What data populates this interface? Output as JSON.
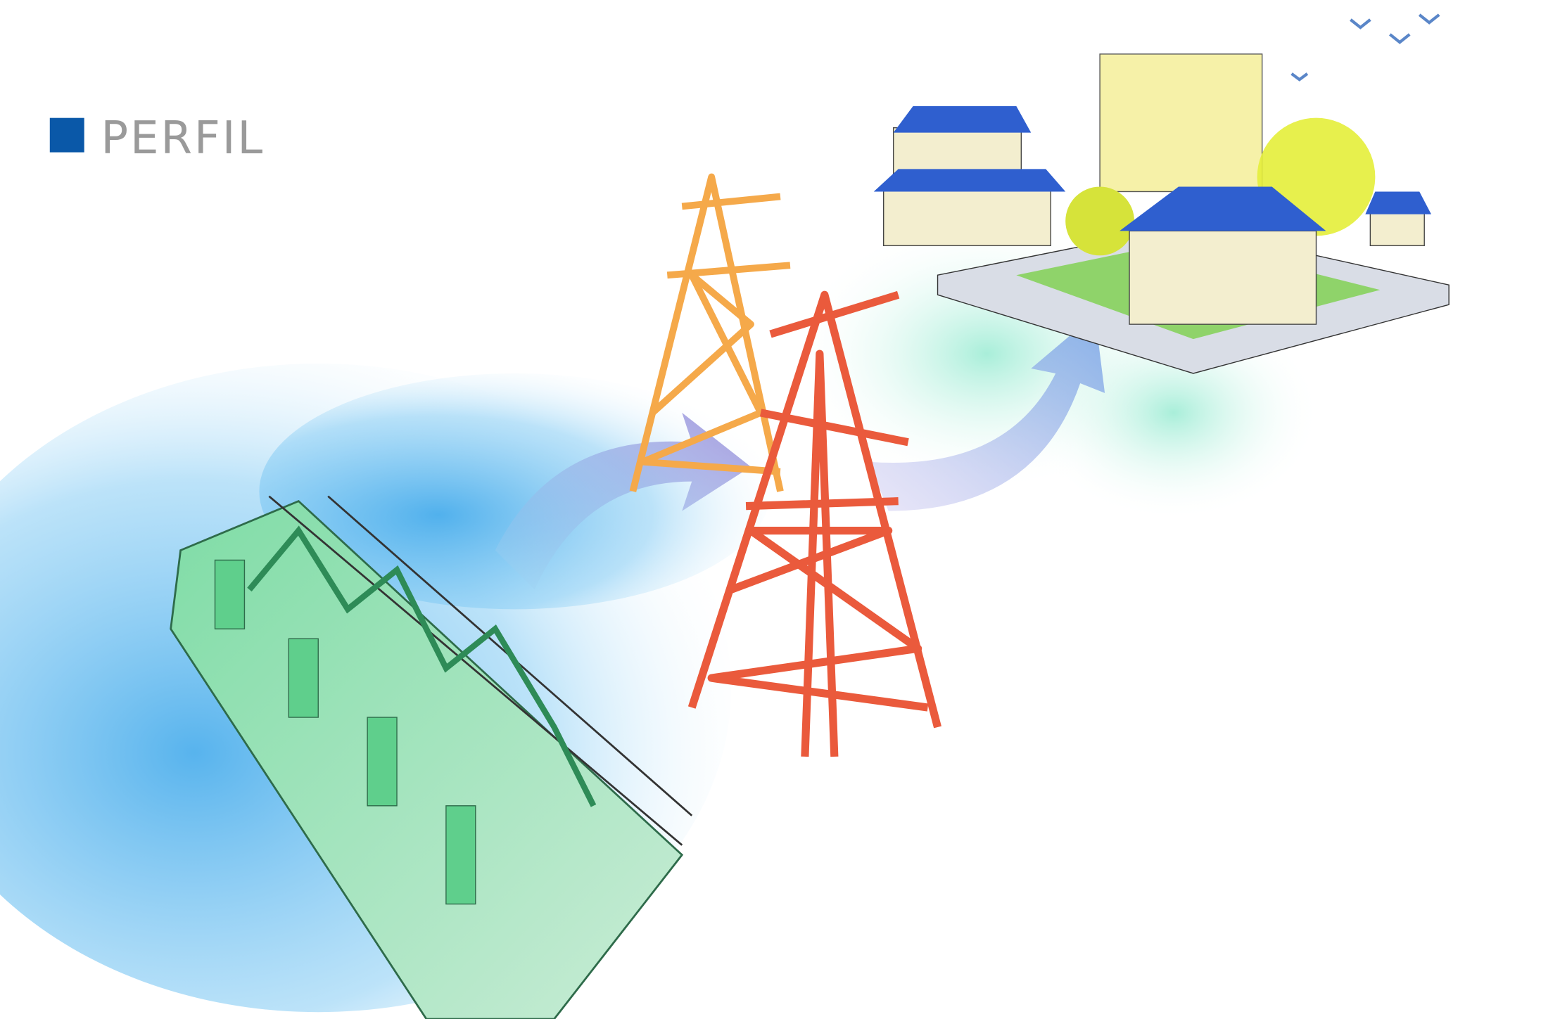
{
  "header": {
    "title": "PERFIL"
  }
}
